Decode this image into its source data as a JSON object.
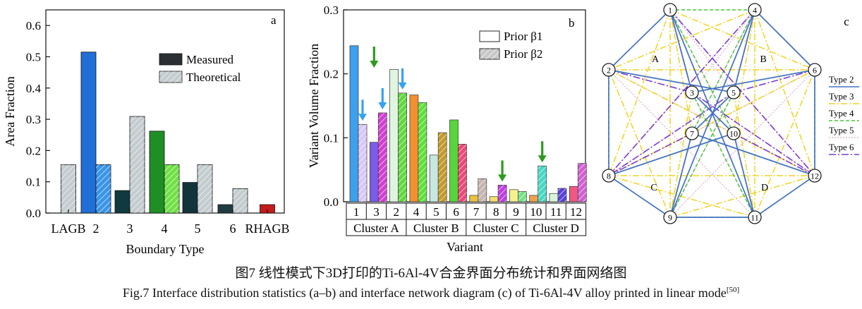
{
  "caption_cn": "图7  线性模式下3D打印的Ti-6Al-4V合金界面分布统计和界面网络图",
  "caption_en": "Fig.7  Interface distribution statistics (a–b) and interface network diagram (c) of Ti-6Al-4V alloy printed in linear mode",
  "caption_ref": "[50]",
  "chart_data": [
    {
      "panel": "a",
      "type": "bar",
      "xlabel": "Boundary Type",
      "ylabel": "Area Fraction",
      "ylim": [
        0,
        0.65
      ],
      "yticks": [
        "0.0",
        "0.1",
        "0.2",
        "0.3",
        "0.4",
        "0.5",
        "0.6"
      ],
      "categories": [
        "LAGB",
        "2",
        "3",
        "4",
        "5",
        "6",
        "RHAGB"
      ],
      "series": [
        {
          "name": "Measured",
          "values": [
            null,
            0.515,
            0.072,
            0.262,
            0.098,
            0.027,
            0.027
          ]
        },
        {
          "name": "Theoretical",
          "values": [
            0.155,
            0.155,
            0.309,
            0.155,
            0.155,
            0.078,
            null
          ]
        }
      ],
      "colors": {
        "LAGB": "#bfbfbf",
        "2": "#1f6fd6",
        "3": "#103a40",
        "4": "#1f8f25",
        "5": "#12353c",
        "6": "#203c42",
        "RHAGB": "#c41b1b"
      },
      "legend_position": "top-right"
    },
    {
      "panel": "b",
      "type": "bar",
      "xlabel": "Variant",
      "ylabel": "Variant Volume Fraction",
      "ylim": [
        0,
        0.3
      ],
      "yticks": [
        "0.0",
        "0.1",
        "0.2",
        "0.3"
      ],
      "categories": [
        "1",
        "3",
        "2",
        "4",
        "5",
        "6",
        "7",
        "8",
        "9",
        "10",
        "11",
        "12"
      ],
      "series": [
        {
          "name": "Prior β1",
          "values": [
            0.244,
            0.093,
            0.207,
            0.167,
            0.073,
            0.128,
            0.01,
            0.008,
            0.019,
            0.01,
            0.013,
            0.024
          ]
        },
        {
          "name": "Prior β2",
          "values": [
            0.121,
            0.139,
            0.17,
            0.155,
            0.108,
            0.09,
            0.036,
            0.026,
            0.016,
            0.056,
            0.021,
            0.06
          ]
        }
      ],
      "colors": [
        "#3ea0ec",
        "#7a5ce6",
        "#dff5e0",
        "#f2902f",
        "#c6e8e0",
        "#56d63a",
        "#e9c23e",
        "#f7e06a",
        "#f6f08c",
        "#f0a24b",
        "#d8f4d8",
        "#f05882"
      ],
      "beta2_colors": [
        "#d8c8f2",
        "#d040d0",
        "#62d840",
        "#5ee03a",
        "#c39a2c",
        "#ea4a78",
        "#c6b6b2",
        "#c040e0",
        "#78e08a",
        "#48d8c4",
        "#5a40d8",
        "#d060d0"
      ],
      "clusters": [
        "Cluster A",
        "Cluster B",
        "Cluster C",
        "Cluster D"
      ],
      "arrows": {
        "blue": [
          "1",
          "3",
          "2"
        ],
        "green": [
          "3",
          "8",
          "10"
        ]
      },
      "legend_position": "top-right"
    }
  ],
  "panel_labels": {
    "a": "a",
    "b": "b",
    "c": "c"
  },
  "network": {
    "nodes": [
      "1",
      "4",
      "6",
      "12",
      "11",
      "9",
      "8",
      "2",
      "3",
      "5",
      "7",
      "10"
    ],
    "regions": [
      "A",
      "B",
      "C",
      "D"
    ],
    "legend": [
      {
        "label": "Type 2",
        "color": "#4472c4"
      },
      {
        "label": "Type 3",
        "color": "#f2d321"
      },
      {
        "label": "Type 4",
        "color": "#45c93a"
      },
      {
        "label": "Type 5",
        "color": "#e6b9cf"
      },
      {
        "label": "Type 6",
        "color": "#7a3bd6"
      }
    ]
  }
}
